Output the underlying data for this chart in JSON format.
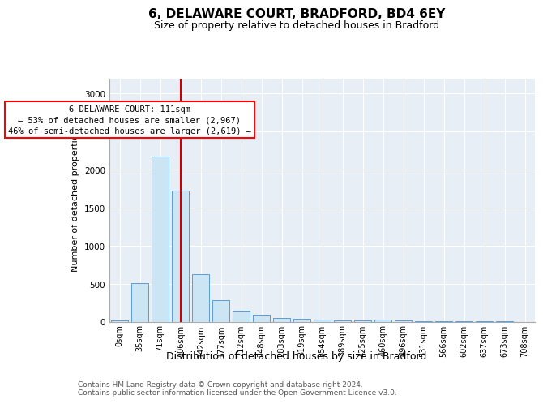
{
  "title1": "6, DELAWARE COURT, BRADFORD, BD4 6EY",
  "title2": "Size of property relative to detached houses in Bradford",
  "xlabel": "Distribution of detached houses by size in Bradford",
  "ylabel": "Number of detached properties",
  "categories": [
    "0sqm",
    "35sqm",
    "71sqm",
    "106sqm",
    "142sqm",
    "177sqm",
    "212sqm",
    "248sqm",
    "283sqm",
    "319sqm",
    "354sqm",
    "389sqm",
    "425sqm",
    "460sqm",
    "496sqm",
    "531sqm",
    "566sqm",
    "602sqm",
    "637sqm",
    "673sqm",
    "708sqm"
  ],
  "values": [
    20,
    510,
    2175,
    1720,
    625,
    280,
    140,
    90,
    50,
    40,
    30,
    20,
    15,
    30,
    20,
    5,
    3,
    2,
    1,
    1,
    0
  ],
  "bar_color": "#cce5f5",
  "bar_edge_color": "#5b9bd5",
  "vline_x": 3.0,
  "annotation_line1": "6 DELAWARE COURT: 111sqm",
  "annotation_line2": "← 53% of detached houses are smaller (2,967)",
  "annotation_line3": "46% of semi-detached houses are larger (2,619) →",
  "footnote1": "Contains HM Land Registry data © Crown copyright and database right 2024.",
  "footnote2": "Contains public sector information licensed under the Open Government Licence v3.0.",
  "ylim": [
    0,
    3200
  ],
  "vline_color": "#cc0000",
  "bg_color": "#e8eef5",
  "grid_color": "#ffffff",
  "title1_fontsize": 11,
  "title2_fontsize": 9,
  "ylabel_fontsize": 8,
  "xlabel_fontsize": 9,
  "tick_fontsize": 7,
  "footnote_fontsize": 6.5
}
